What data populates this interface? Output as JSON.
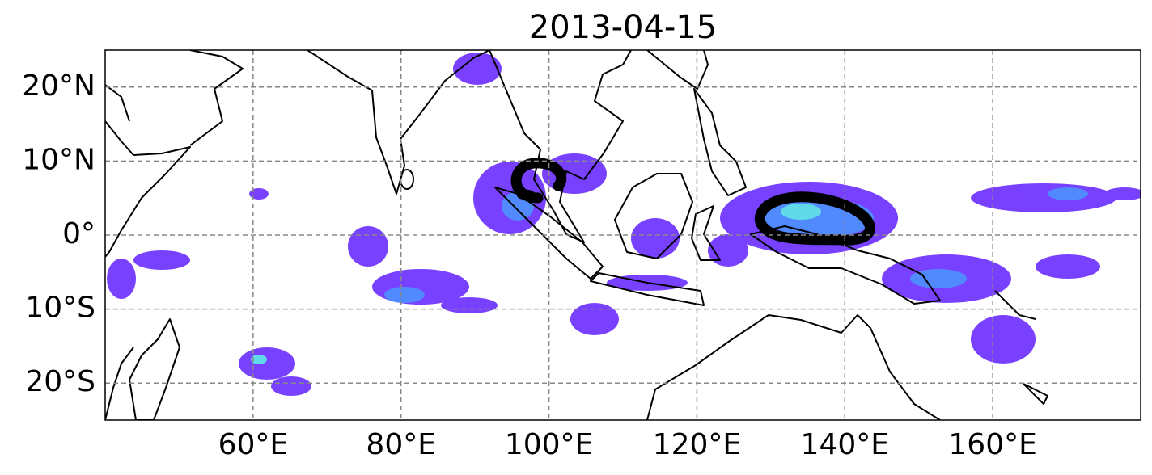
{
  "chart_data": {
    "type": "map",
    "title": "2013-04-15",
    "xlim": [
      40,
      180
    ],
    "ylim": [
      -25,
      25
    ],
    "xticks": [
      {
        "value": 60,
        "label": "60°E"
      },
      {
        "value": 80,
        "label": "80°E"
      },
      {
        "value": 100,
        "label": "100°E"
      },
      {
        "value": 120,
        "label": "120°E"
      },
      {
        "value": 140,
        "label": "140°E"
      },
      {
        "value": 160,
        "label": "160°E"
      }
    ],
    "yticks": [
      {
        "value": -20,
        "label": "20°S"
      },
      {
        "value": -10,
        "label": "10°S"
      },
      {
        "value": 0,
        "label": "0°"
      },
      {
        "value": 10,
        "label": "10°N"
      },
      {
        "value": 20,
        "label": "20°N"
      }
    ],
    "grid": true
  }
}
